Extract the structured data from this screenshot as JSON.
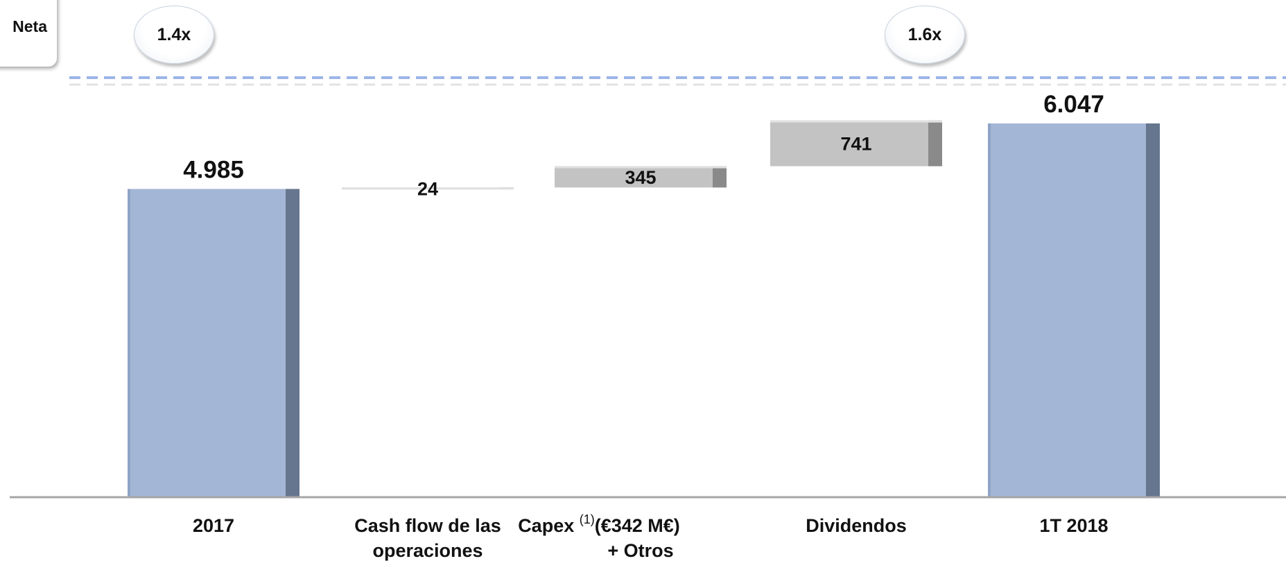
{
  "legend": {
    "label": "Neta"
  },
  "ratios": [
    {
      "label": "1.4x",
      "category": "2017"
    },
    {
      "label": "1.6x",
      "category": "1T 2018"
    }
  ],
  "chart_data": {
    "type": "bar",
    "subtype": "waterfall",
    "title": "",
    "xlabel": "",
    "ylabel": "",
    "ylim": [
      0,
      6500
    ],
    "grid": false,
    "categories": [
      {
        "label_lines": [
          "2017"
        ],
        "superscript": ""
      },
      {
        "label_lines": [
          "Cash flow de las",
          "operaciones"
        ],
        "superscript": ""
      },
      {
        "label_lines": [
          "Capex",
          "(€342 M€)",
          "+ Otros"
        ],
        "superscript": "(1)"
      },
      {
        "label_lines": [
          "Dividendos"
        ],
        "superscript": ""
      },
      {
        "label_lines": [
          "1T 2018"
        ],
        "superscript": ""
      }
    ],
    "values": [
      4985,
      24,
      345,
      741,
      6047
    ],
    "value_labels": [
      "4.985",
      "24",
      "345",
      "741",
      "6.047"
    ],
    "kinds": [
      "total",
      "delta",
      "delta",
      "delta",
      "total"
    ],
    "colors": {
      "total": "#a3b6d6",
      "total_edge": "#66768f",
      "delta": "#c3c3c3",
      "delta_edge": "#8a8a8a",
      "reference_line": "#9cb4e8",
      "axis": "#a6a6a6"
    }
  }
}
